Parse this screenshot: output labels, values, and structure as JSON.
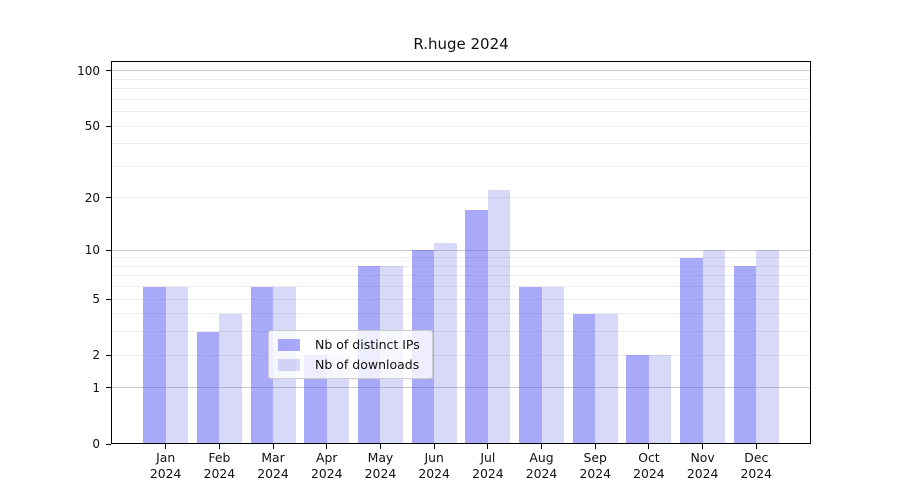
{
  "chart_data": {
    "type": "bar",
    "title": "R.huge 2024",
    "categories": [
      "Jan",
      "Feb",
      "Mar",
      "Apr",
      "May",
      "Jun",
      "Jul",
      "Aug",
      "Sep",
      "Oct",
      "Nov",
      "Dec"
    ],
    "year_label": "2024",
    "series": [
      {
        "name": "Nb of distinct IPs",
        "values": [
          6,
          3,
          6,
          2,
          8,
          10,
          17,
          6,
          4,
          2,
          9,
          8
        ],
        "color": "#5353f3",
        "alpha": 0.5
      },
      {
        "name": "Nb of downloads",
        "values": [
          6,
          4,
          6,
          2,
          8,
          11,
          22,
          6,
          4,
          2,
          10,
          10
        ],
        "color": "#7d7de8",
        "alpha": 0.3
      }
    ],
    "xlabel": "",
    "ylabel": "",
    "yscale": "log1p",
    "ylim": [
      0,
      113
    ],
    "yticks": [
      0,
      1,
      2,
      5,
      10,
      20,
      50,
      100
    ],
    "grid_major": [
      1,
      10,
      100
    ],
    "grid_minor": [
      2,
      3,
      4,
      5,
      6,
      7,
      8,
      9,
      20,
      30,
      40,
      50,
      60,
      70,
      80,
      90
    ],
    "legend_position": "lower center",
    "colors": {
      "grid_major": "#c9c9c9",
      "grid_minor": "#ececec",
      "spine": "#000000",
      "text": "#111111",
      "legend_border": "#cccccc"
    }
  }
}
